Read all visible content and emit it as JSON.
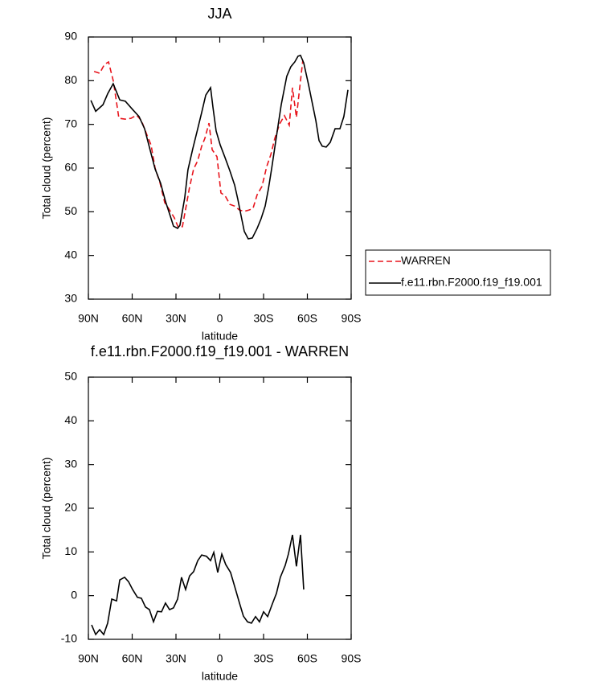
{
  "chart_data": [
    {
      "type": "line",
      "title": "JJA",
      "x_label": "latitude",
      "y_label": "Total cloud (percent)",
      "xlim": [
        90,
        -90
      ],
      "xticks": [
        {
          "value": 90,
          "label": "90N"
        },
        {
          "value": 60,
          "label": "60N"
        },
        {
          "value": 30,
          "label": "30N"
        },
        0,
        {
          "value": -30,
          "label": "30S"
        },
        {
          "value": -60,
          "label": "60S"
        },
        {
          "value": -90,
          "label": "90S"
        }
      ],
      "ylim": [
        30,
        90
      ],
      "yticks": [
        30,
        40,
        50,
        60,
        70,
        80,
        90
      ],
      "legend": "right",
      "series": [
        {
          "name": "WARREN",
          "color": "#e8141c",
          "line_style": "dashed",
          "x": [
            86.1,
            82.3,
            79,
            76.2,
            72.9,
            69.1,
            64.7,
            60.8,
            57,
            53.7,
            49.8,
            47.1,
            44.3,
            41,
            37.7,
            34.4,
            31.1,
            28.4,
            25.6,
            23.4,
            20.7,
            17.9,
            15.1,
            12.4,
            10.2,
            7.4,
            5.2,
            1.9,
            -0.8,
            -3.6,
            -6.9,
            -10.2,
            -13.5,
            -16.8,
            -20.1,
            -22.8,
            -25.6,
            -28.9,
            -32.2,
            -35,
            -37.7,
            -41,
            -44.3,
            -47.6,
            -49.8,
            -52.5,
            -54.7,
            -56.9
          ],
          "values": [
            82.1,
            81.7,
            83.7,
            84.3,
            79.9,
            71.4,
            71.2,
            71.4,
            72.1,
            70.9,
            67.5,
            65.3,
            60,
            56.7,
            52.1,
            50.4,
            48.6,
            46.4,
            46.6,
            50.6,
            55.6,
            59.8,
            61.7,
            65,
            66.8,
            70.3,
            64.2,
            62.6,
            54.3,
            53.7,
            51.7,
            51.3,
            50.4,
            50.1,
            50.4,
            50.8,
            53.9,
            55.8,
            60.4,
            63.1,
            66.8,
            70.1,
            72,
            69.8,
            78.4,
            71.6,
            78.2,
            84.7
          ]
        },
        {
          "name": "f.e11.rbn.F2000.f19_f19.001",
          "color": "#000000",
          "line_style": "solid",
          "x": [
            88.3,
            85,
            80,
            76.8,
            73,
            68.5,
            64.7,
            59.7,
            55.3,
            51.5,
            47.6,
            44.3,
            40.5,
            37.2,
            33.3,
            31.7,
            28.9,
            27.3,
            24,
            21.8,
            18.5,
            15.1,
            12.4,
            9.6,
            6.3,
            4.7,
            2.5,
            -0.3,
            -3.6,
            -6.9,
            -10.2,
            -12.4,
            -14.6,
            -16.8,
            -19.5,
            -22.3,
            -25.6,
            -28.3,
            -31.1,
            -33.3,
            -35.5,
            -38.8,
            -42.1,
            -45.9,
            -48.7,
            -51.4,
            -53.6,
            -55.3,
            -57.5,
            -60.8,
            -63.6,
            -65.8,
            -68,
            -70.2,
            -72.9,
            -75.7,
            -79,
            -82.3,
            -85,
            -87.8
          ],
          "values": [
            75.5,
            73,
            74.5,
            77,
            79.3,
            75.6,
            75.3,
            73.4,
            71.8,
            69,
            64,
            59.8,
            56.5,
            52.4,
            48.4,
            46.7,
            46.2,
            46.9,
            53.2,
            59.6,
            64.4,
            69,
            72.7,
            76.7,
            78.4,
            74,
            68.5,
            65.3,
            62.4,
            59.4,
            56.1,
            52.8,
            49.1,
            45.5,
            43.8,
            44,
            46.2,
            48.4,
            51.3,
            55.2,
            59.8,
            67.2,
            74.5,
            81,
            83.2,
            84.3,
            85.6,
            85.8,
            84.1,
            79.1,
            74.5,
            70.9,
            66.3,
            65,
            64.8,
            65.9,
            69,
            69,
            71.8,
            77.9
          ]
        }
      ]
    },
    {
      "type": "line",
      "title": "f.e11.rbn.F2000.f19_f19.001 - WARREN",
      "x_label": "latitude",
      "y_label": "Total cloud (percent)",
      "xlim": [
        90,
        -90
      ],
      "xticks": [
        {
          "value": 90,
          "label": "90N"
        },
        {
          "value": 60,
          "label": "60N"
        },
        {
          "value": 30,
          "label": "30N"
        },
        0,
        {
          "value": -30,
          "label": "30S"
        },
        {
          "value": -60,
          "label": "60S"
        },
        {
          "value": -90,
          "label": "90S"
        }
      ],
      "ylim": [
        -10,
        50
      ],
      "yticks": [
        -10,
        0,
        10,
        20,
        30,
        40,
        50
      ],
      "series": [
        {
          "color": "#000000",
          "line_style": "solid",
          "x": [
            87.8,
            85,
            82.3,
            79.5,
            76.8,
            74,
            70.7,
            68.5,
            65.2,
            62.5,
            59.7,
            56.4,
            53.7,
            50.9,
            48.2,
            45.4,
            42.7,
            39.9,
            37.2,
            34.4,
            31.7,
            28.9,
            26.2,
            23.4,
            20.7,
            17.9,
            15.1,
            12.4,
            9.1,
            6.3,
            4.1,
            1.4,
            -1.4,
            -4.1,
            -7.4,
            -10.2,
            -13.5,
            -16.2,
            -19,
            -21.7,
            -24.5,
            -27.2,
            -30,
            -32.8,
            -36,
            -38.8,
            -41.5,
            -44.8,
            -47,
            -49.8,
            -52.5,
            -55.3,
            -57.5
          ],
          "values": [
            -6.7,
            -8.9,
            -7.8,
            -8.9,
            -6.3,
            -0.8,
            -1.2,
            3.6,
            4.2,
            3.2,
            1.4,
            -0.4,
            -0.6,
            -2.6,
            -3.2,
            -6,
            -3.6,
            -3.7,
            -1.7,
            -3.2,
            -2.8,
            -0.8,
            4.2,
            1.4,
            4.5,
            5.5,
            8,
            9.3,
            9,
            8,
            9.9,
            5.3,
            9.5,
            7.1,
            5.3,
            2.1,
            -1.7,
            -4.7,
            -6,
            -6.3,
            -4.8,
            -6,
            -3.7,
            -4.8,
            -1.9,
            0.5,
            4.2,
            6.9,
            9.5,
            13.9,
            6.7,
            13.9,
            1.4
          ]
        }
      ]
    }
  ]
}
